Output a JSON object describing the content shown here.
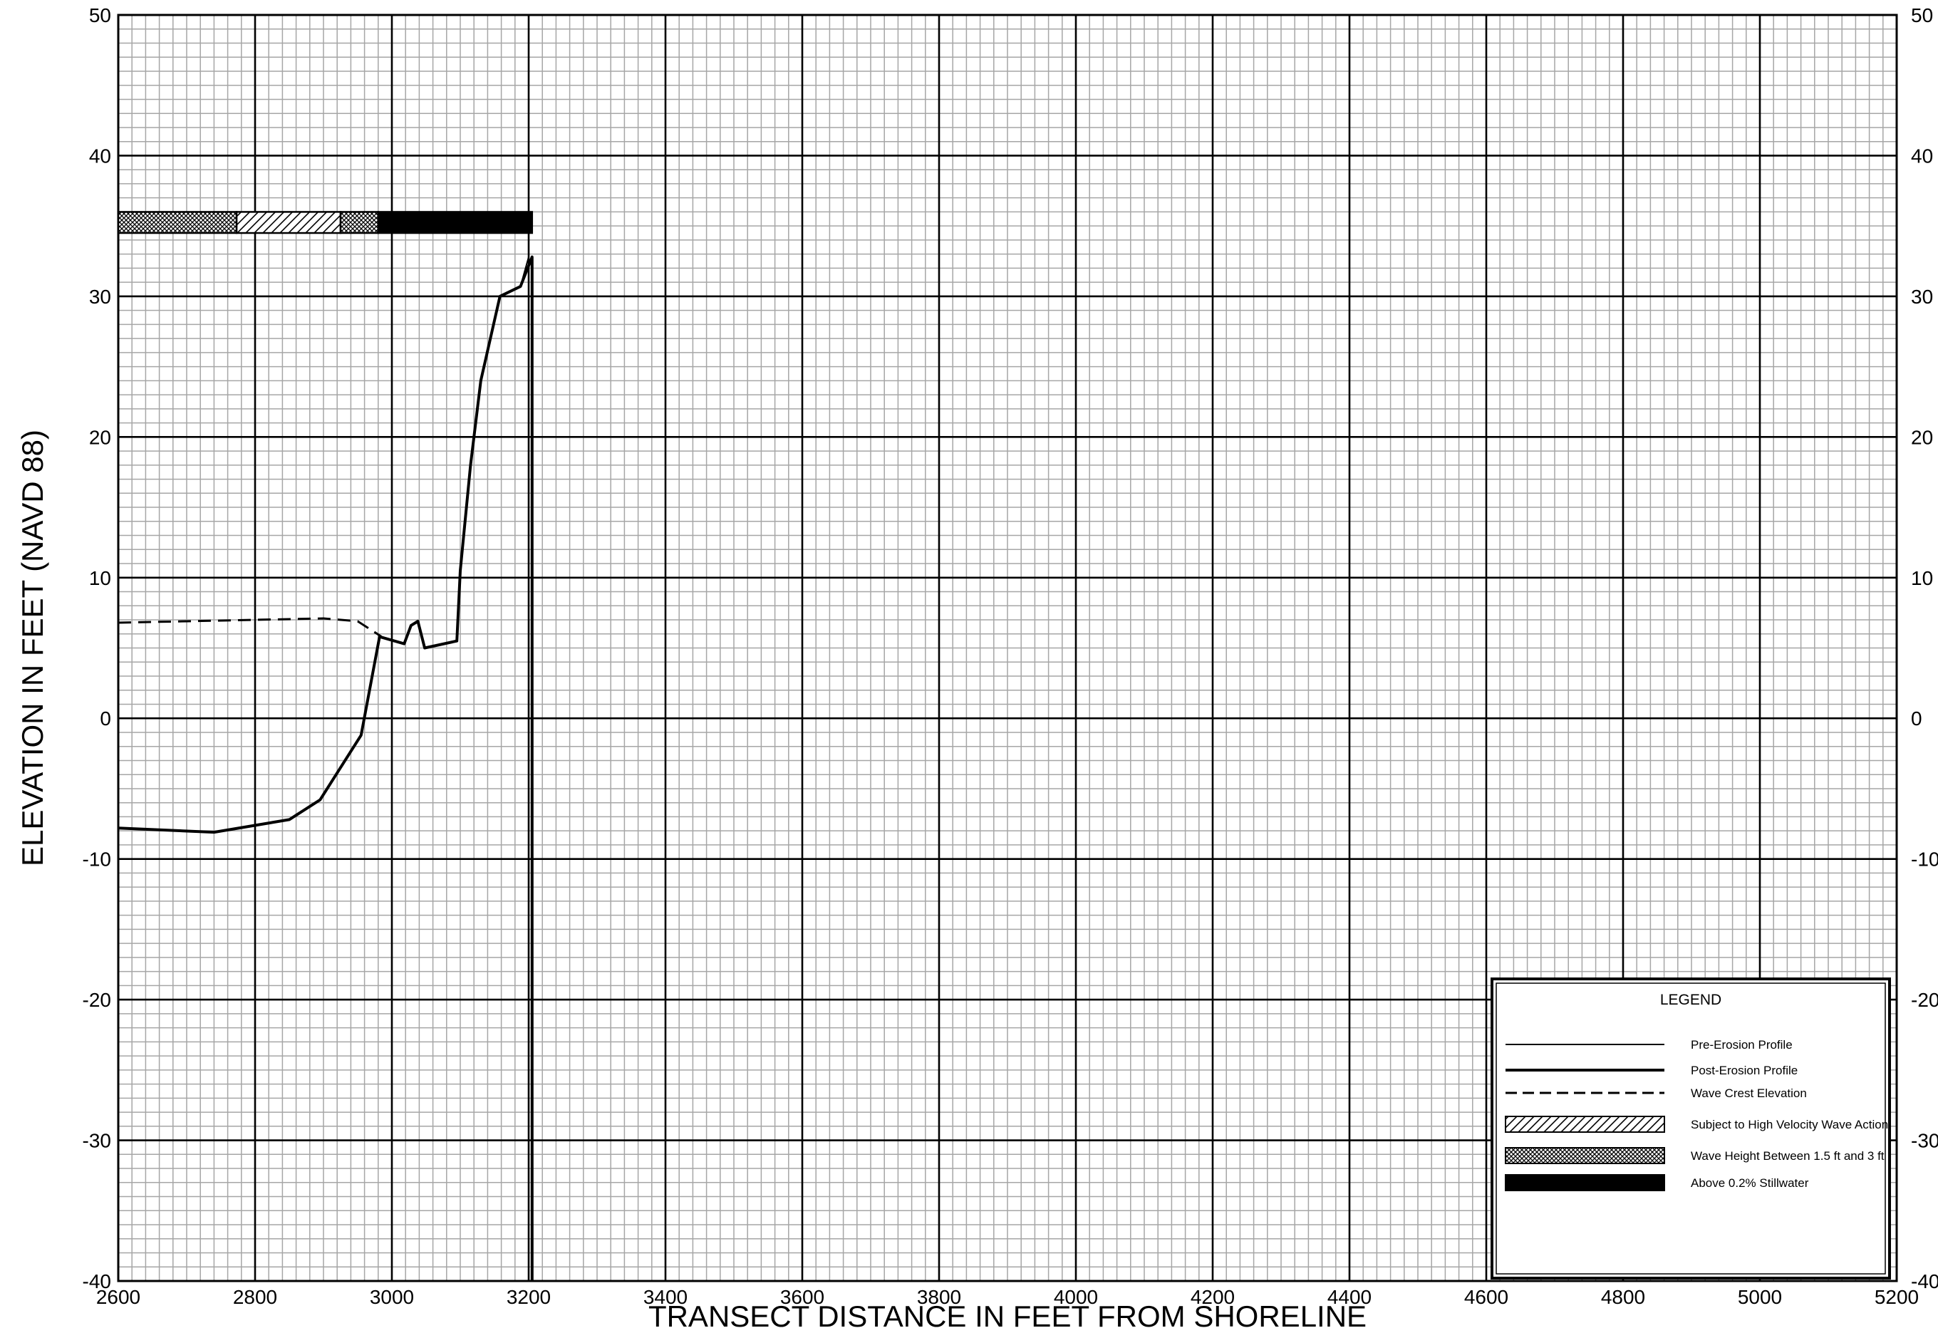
{
  "chart_data": {
    "type": "line",
    "title": "",
    "xlabel": "TRANSECT DISTANCE IN FEET FROM SHORELINE",
    "ylabel": "ELEVATION IN FEET (NAVD 88)",
    "xlim": [
      2600,
      5200
    ],
    "ylim": [
      -40,
      50
    ],
    "x_major_step": 200,
    "x_minor_step": 20,
    "y_major_step": 10,
    "y_minor_step": 1,
    "x_ticks": [
      "2600",
      "2800",
      "3000",
      "3200",
      "3400",
      "3600",
      "3800",
      "4000",
      "4200",
      "4400",
      "4600",
      "4800",
      "5000",
      "5200"
    ],
    "y_ticks": [
      "-40",
      "-30",
      "-20",
      "-10",
      "0",
      "10",
      "20",
      "30",
      "40",
      "50"
    ],
    "grid": true,
    "legend_position": "bottom-right",
    "legend_title": "LEGEND",
    "series": [
      {
        "name": "Pre-Erosion Profile",
        "style": "thin",
        "points": [
          [
            2600,
            -7.8
          ],
          [
            2740,
            -8.1
          ],
          [
            2850,
            -7.2
          ],
          [
            2895,
            -5.8
          ],
          [
            2955,
            -1.2
          ],
          [
            2982,
            5.8
          ],
          [
            3018,
            5.3
          ],
          [
            3028,
            6.6
          ],
          [
            3038,
            6.9
          ],
          [
            3048,
            5.0
          ],
          [
            3095,
            5.5
          ],
          [
            3100,
            10.5
          ],
          [
            3115,
            18.0
          ],
          [
            3130,
            24.0
          ],
          [
            3158,
            30.0
          ],
          [
            3188,
            30.7
          ],
          [
            3200,
            32.8
          ],
          [
            3200,
            -40
          ]
        ]
      },
      {
        "name": "Post-Erosion Profile",
        "style": "thick",
        "points": [
          [
            2600,
            -7.8
          ],
          [
            2740,
            -8.1
          ],
          [
            2850,
            -7.2
          ],
          [
            2895,
            -5.8
          ],
          [
            2955,
            -1.2
          ],
          [
            2982,
            5.8
          ],
          [
            3018,
            5.3
          ],
          [
            3028,
            6.6
          ],
          [
            3038,
            6.9
          ],
          [
            3048,
            5.0
          ],
          [
            3095,
            5.5
          ],
          [
            3100,
            10.5
          ],
          [
            3115,
            18.0
          ],
          [
            3130,
            24.0
          ],
          [
            3158,
            30.0
          ],
          [
            3188,
            30.7
          ],
          [
            3205,
            32.8
          ],
          [
            3205,
            -40
          ]
        ]
      },
      {
        "name": "Wave Crest Elevation",
        "style": "dashed",
        "points": [
          [
            2600,
            6.8
          ],
          [
            2700,
            6.9
          ],
          [
            2800,
            7.0
          ],
          [
            2900,
            7.1
          ],
          [
            2950,
            6.9
          ],
          [
            2985,
            5.8
          ]
        ]
      }
    ],
    "zone_bar": {
      "y_range": [
        34.5,
        36.0
      ],
      "segments": [
        {
          "from": 2600,
          "to": 2773,
          "zone": "Wave Height Between 1.5 ft and 3 ft"
        },
        {
          "from": 2773,
          "to": 2925,
          "zone": "Subject to High Velocity Wave Action"
        },
        {
          "from": 2925,
          "to": 2980,
          "zone": "Wave Height Between 1.5 ft and 3 ft"
        },
        {
          "from": 2980,
          "to": 3205,
          "zone": "Above 0.2% Stillwater"
        }
      ]
    },
    "legend": [
      {
        "label": "Pre-Erosion Profile",
        "symbol": "thin-line"
      },
      {
        "label": "Post-Erosion Profile",
        "symbol": "thick-line"
      },
      {
        "label": "Wave Crest Elevation",
        "symbol": "dashed-line"
      },
      {
        "label": "Subject to High Velocity Wave Action",
        "symbol": "hatch"
      },
      {
        "label": "Wave Height Between 1.5 ft and 3 ft",
        "symbol": "crosshatch"
      },
      {
        "label": "Above 0.2% Stillwater",
        "symbol": "solid"
      }
    ],
    "colors": {
      "ink": "#000000",
      "minor_grid": "#a6a6a6",
      "background": "#ffffff"
    }
  }
}
